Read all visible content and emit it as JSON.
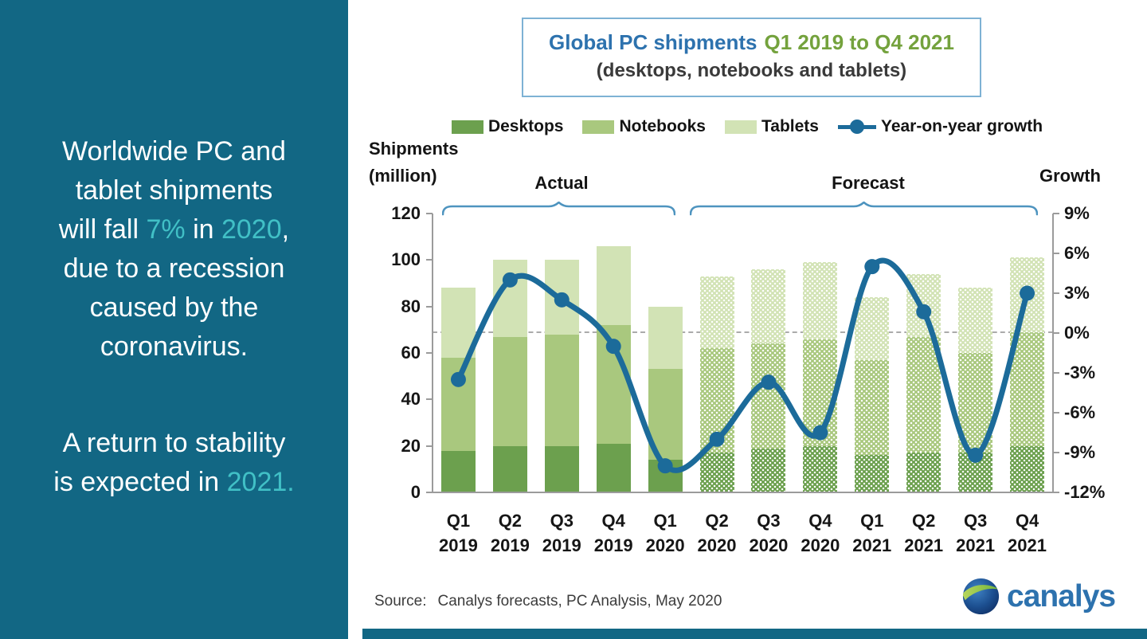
{
  "colors": {
    "panel_bg": "#126784",
    "highlight": "#41c0c6",
    "title_blue": "#2d72ae",
    "title_green": "#74a23d",
    "box_border": "#7eb2d4",
    "brace": "#4e94bf",
    "desktops": "#6ca04e",
    "notebooks": "#a9c87e",
    "tablets": "#d2e3b5",
    "growth_line": "#1c6b9a"
  },
  "left_panel": {
    "paragraphs": [
      {
        "lines": [
          [
            {
              "t": "Worldwide PC and"
            }
          ],
          [
            {
              "t": "tablet shipments"
            }
          ],
          [
            {
              "t": "will fall "
            },
            {
              "t": "7%",
              "hl": true
            },
            {
              "t": " in "
            },
            {
              "t": "2020",
              "hl": true
            },
            {
              "t": ","
            }
          ],
          [
            {
              "t": "due to a recession"
            }
          ],
          [
            {
              "t": "caused by the"
            }
          ],
          [
            {
              "t": "coronavirus."
            }
          ]
        ]
      },
      {
        "lines": [
          [
            {
              "t": "A return to stability"
            }
          ],
          [
            {
              "t": "is expected in "
            },
            {
              "t": "2021.",
              "hl": true
            }
          ]
        ]
      }
    ]
  },
  "title": {
    "line1_main": "Global PC shipments",
    "line1_range": "Q1 2019 to Q4 2021",
    "line2": "(desktops, notebooks and tablets)"
  },
  "axis": {
    "left_title_line1": "Shipments",
    "left_title_line2": "(million)",
    "right_title": "Growth"
  },
  "sections": {
    "actual": "Actual",
    "forecast": "Forecast"
  },
  "source_label": "Source:",
  "source_text": "Canalys forecasts, PC Analysis, May 2020",
  "logo_text": "canalys",
  "chart_data": {
    "type": "bar",
    "subtype": "stacked bars with overlaid year-on-year growth line; forecast bars use dotted pattern fill",
    "categories": [
      "Q1 2019",
      "Q2 2019",
      "Q3 2019",
      "Q4 2019",
      "Q1 2020",
      "Q2 2020",
      "Q3 2020",
      "Q4 2020",
      "Q1 2021",
      "Q2 2021",
      "Q3 2021",
      "Q4 2021"
    ],
    "series": [
      {
        "name": "Desktops",
        "values": [
          18,
          20,
          20,
          21,
          14,
          17,
          19,
          20,
          16,
          17,
          17,
          20
        ]
      },
      {
        "name": "Notebooks",
        "values": [
          40,
          47,
          48,
          51,
          39,
          45,
          45,
          46,
          41,
          50,
          43,
          49
        ]
      },
      {
        "name": "Tablets",
        "values": [
          30,
          33,
          32,
          34,
          27,
          31,
          32,
          33,
          27,
          27,
          28,
          32
        ]
      }
    ],
    "totals": [
      88,
      100,
      100,
      106,
      80,
      93,
      96,
      99,
      84,
      94,
      88,
      101
    ],
    "line_series": {
      "name": "Year-on-year growth",
      "unit": "%",
      "values": [
        -3.5,
        4,
        2.5,
        -1,
        -10,
        -8,
        -3.7,
        -7.5,
        5,
        1.6,
        -9.2,
        3
      ]
    },
    "forecast_start_index": 5,
    "y_left": {
      "label": "Shipments (million)",
      "min": 0,
      "max": 120,
      "step": 20,
      "ticks": [
        120,
        100,
        80,
        60,
        40,
        20,
        0
      ]
    },
    "y_right": {
      "label": "Growth",
      "min": -12,
      "max": 9,
      "step": 3,
      "ticks": [
        "9%",
        "6%",
        "3%",
        "0%",
        "-3%",
        "-6%",
        "-9%",
        "-12%"
      ],
      "tick_values": [
        9,
        6,
        3,
        0,
        -3,
        -6,
        -9,
        -12
      ]
    },
    "legend": [
      "Desktops",
      "Notebooks",
      "Tablets",
      "Year-on-year growth"
    ],
    "grid": "no gridlines except dashed gray line at 0% growth",
    "legend_position": "top",
    "annotations": {
      "actual_span": "Q1 2019 to Q1 2020",
      "forecast_span": "Q2 2020 to Q4 2021"
    }
  }
}
